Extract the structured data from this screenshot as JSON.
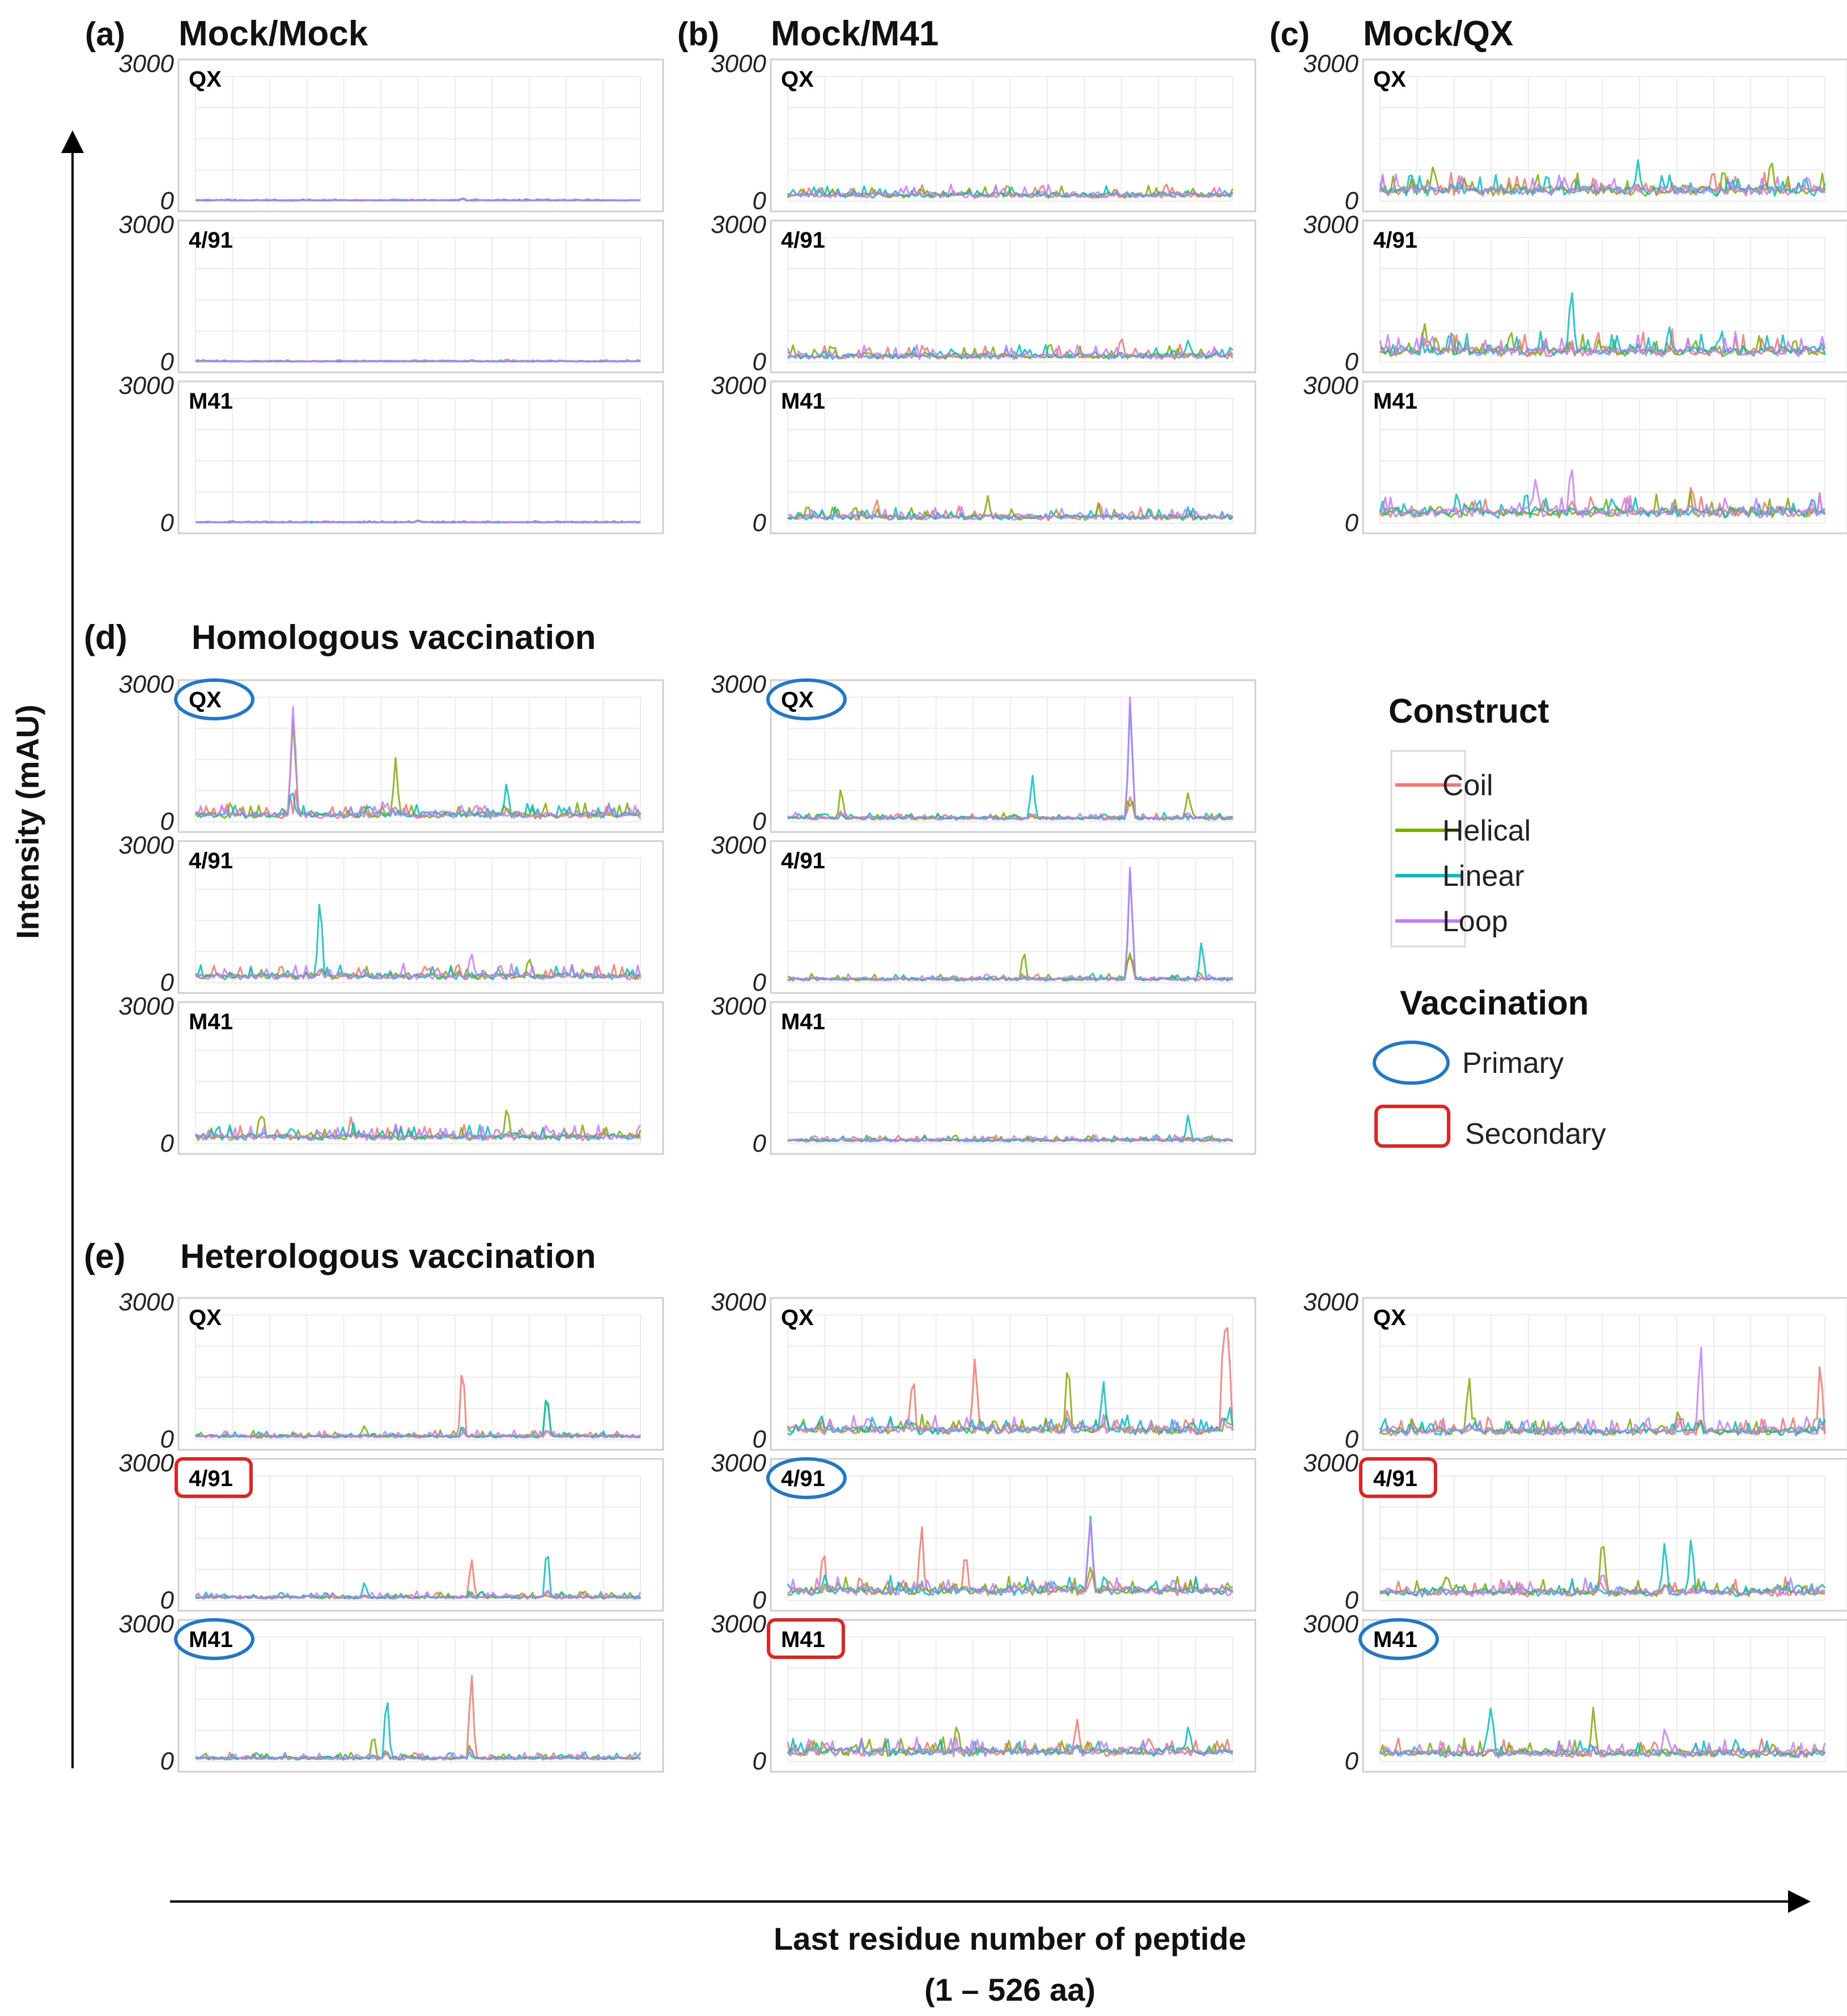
{
  "chart_data": {
    "type": "line",
    "y_label": "Intensity (mAU)",
    "x_label": "Last residue number of peptide",
    "x_range_label": "(1 – 526 aa)",
    "y_tick_max": "3000",
    "y_tick_min": "0",
    "ylim": [
      0,
      3000
    ],
    "xlim": [
      1,
      526
    ],
    "sections": [
      {
        "letter": "(d)",
        "title": "Homologous vaccination"
      },
      {
        "letter": "(e)",
        "title": "Heterologous vaccination"
      }
    ],
    "groups": [
      {
        "letter": "(a)",
        "title": "Mock/Mock",
        "row": 0,
        "col": 0,
        "profile": "flat",
        "panels": [
          {
            "label": "QX",
            "mark": "none"
          },
          {
            "label": "4/91",
            "mark": "none"
          },
          {
            "label": "M41",
            "mark": "none"
          }
        ]
      },
      {
        "letter": "(b)",
        "title": "Mock/M41",
        "row": 0,
        "col": 1,
        "profile": "low",
        "panels": [
          {
            "label": "QX",
            "mark": "none"
          },
          {
            "label": "4/91",
            "mark": "none"
          },
          {
            "label": "M41",
            "mark": "none"
          }
        ]
      },
      {
        "letter": "(c)",
        "title": "Mock/QX",
        "row": 0,
        "col": 2,
        "profile": "lowmid",
        "panels": [
          {
            "label": "QX",
            "mark": "none"
          },
          {
            "label": "4/91",
            "mark": "none"
          },
          {
            "label": "M41",
            "mark": "none"
          }
        ]
      },
      {
        "letter": "",
        "title": "",
        "row": 1,
        "col": 0,
        "profile": "homQX",
        "panels": [
          {
            "label": "QX",
            "mark": "primary"
          },
          {
            "label": "4/91",
            "mark": "none"
          },
          {
            "label": "M41",
            "mark": "none"
          }
        ]
      },
      {
        "letter": "",
        "title": "",
        "row": 1,
        "col": 1,
        "profile": "homM41",
        "panels": [
          {
            "label": "QX",
            "mark": "primary"
          },
          {
            "label": "4/91",
            "mark": "none"
          },
          {
            "label": "M41",
            "mark": "none"
          }
        ]
      },
      {
        "letter": "",
        "title": "",
        "row": 2,
        "col": 0,
        "profile": "het1",
        "panels": [
          {
            "label": "QX",
            "mark": "none"
          },
          {
            "label": "4/91",
            "mark": "secondary"
          },
          {
            "label": "M41",
            "mark": "primary"
          }
        ]
      },
      {
        "letter": "",
        "title": "",
        "row": 2,
        "col": 1,
        "profile": "het2",
        "panels": [
          {
            "label": "QX",
            "mark": "none"
          },
          {
            "label": "4/91",
            "mark": "primary"
          },
          {
            "label": "M41",
            "mark": "secondary"
          }
        ]
      },
      {
        "letter": "",
        "title": "",
        "row": 2,
        "col": 2,
        "profile": "het3",
        "panels": [
          {
            "label": "QX",
            "mark": "none"
          },
          {
            "label": "4/91",
            "mark": "secondary"
          },
          {
            "label": "M41",
            "mark": "primary"
          }
        ]
      }
    ],
    "series": [
      {
        "name": "Coil",
        "color": "#f8766d"
      },
      {
        "name": "Helical",
        "color": "#7cae00"
      },
      {
        "name": "Linear",
        "color": "#00bfc4"
      },
      {
        "name": "Loop",
        "color": "#c77cff"
      }
    ],
    "legend": {
      "construct_title": "Construct",
      "vaccination_title": "Vaccination",
      "primary_label": "Primary",
      "secondary_label": "Secondary",
      "primary_color": "#1f78c8",
      "secondary_color": "#e32222"
    }
  }
}
